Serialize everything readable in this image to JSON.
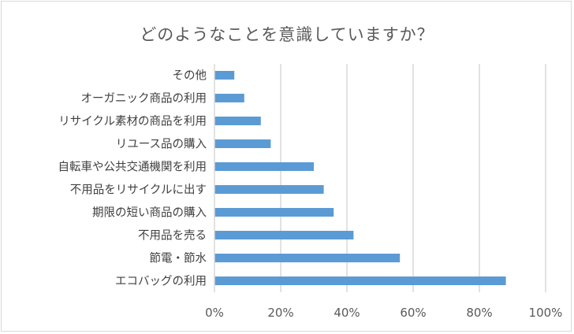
{
  "chart_data": {
    "type": "bar",
    "orientation": "horizontal",
    "title": "どのようなことを意識していますか？",
    "categories": [
      "エコバッグの利用",
      "節電・節水",
      "不用品を売る",
      "期限の短い商品の購入",
      "不用品をリサイクルに出す",
      "自転車や公共交通機関を利用",
      "リユース品の購入",
      "リサイクル素材の商品を利用",
      "オーガニック商品の利用",
      "その他"
    ],
    "values": [
      88,
      56,
      42,
      36,
      33,
      30,
      17,
      14,
      9,
      6
    ],
    "value_unit": "%",
    "xlim": [
      0,
      100
    ],
    "xticks": [
      0,
      20,
      40,
      60,
      80,
      100
    ],
    "xtick_labels": [
      "0%",
      "20%",
      "40%",
      "60%",
      "80%",
      "100%"
    ],
    "xlabel": "",
    "ylabel": "",
    "grid": "vertical",
    "legend": "none",
    "colors": {
      "bar": "#5b9bd5",
      "grid": "#d9d9d9",
      "text": "#595959",
      "label": "#404040"
    }
  }
}
